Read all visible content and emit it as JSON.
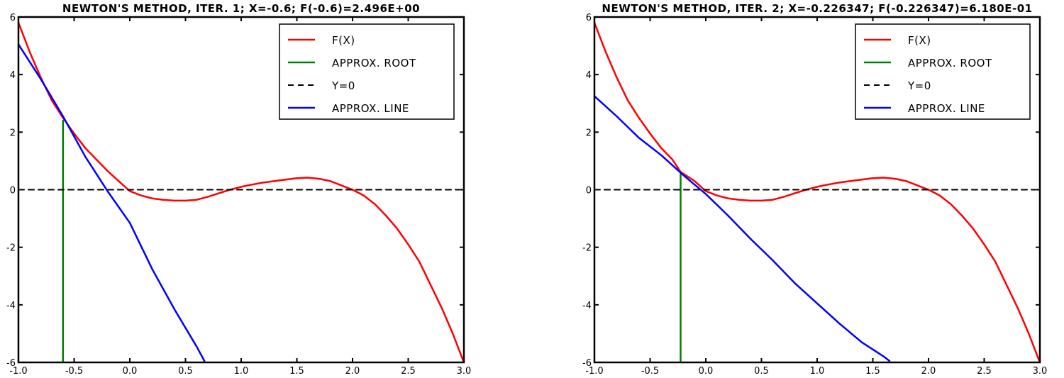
{
  "chart_data": [
    {
      "type": "line",
      "title": "NEWTON'S METHOD, ITER. 1; X=-0.6; F(-0.6)=2.496E+00",
      "xlim": [
        -1.0,
        3.0
      ],
      "ylim": [
        -6,
        6
      ],
      "xticks": [
        "-1.0",
        "-0.5",
        "0.0",
        "0.5",
        "1.0",
        "1.5",
        "2.0",
        "2.5",
        "3.0"
      ],
      "yticks": [
        "-6",
        "-4",
        "-2",
        "0",
        "2",
        "4",
        "6"
      ],
      "grid": false,
      "legend_position": "top-right",
      "series": [
        {
          "name": "F(X)",
          "color": "#ff0000",
          "style": "solid",
          "x": [
            -1.0,
            -0.9,
            -0.8,
            -0.7,
            -0.6,
            -0.5,
            -0.4,
            -0.3,
            -0.2,
            -0.1,
            0.0,
            0.1,
            0.2,
            0.3,
            0.4,
            0.5,
            0.6,
            0.7,
            0.8,
            0.9,
            1.0,
            1.1,
            1.2,
            1.3,
            1.4,
            1.5,
            1.6,
            1.7,
            1.8,
            1.9,
            2.0,
            2.1,
            2.2,
            2.3,
            2.4,
            2.5,
            2.6,
            2.7,
            2.8,
            2.9,
            3.0
          ],
          "y": [
            5.8,
            4.8,
            3.9,
            3.1,
            2.496,
            1.95,
            1.45,
            1.05,
            0.65,
            0.3,
            -0.05,
            -0.2,
            -0.3,
            -0.35,
            -0.38,
            -0.38,
            -0.35,
            -0.25,
            -0.12,
            0.0,
            0.1,
            0.18,
            0.25,
            0.3,
            0.35,
            0.4,
            0.42,
            0.38,
            0.3,
            0.15,
            0.0,
            -0.2,
            -0.5,
            -0.9,
            -1.35,
            -1.9,
            -2.5,
            -3.3,
            -4.1,
            -5.0,
            -6.0
          ]
        },
        {
          "name": "APPROX. ROOT",
          "color": "#008000",
          "style": "solid",
          "x": [
            -0.6,
            -0.6
          ],
          "y": [
            -5.95,
            2.4
          ]
        },
        {
          "name": "Y=0",
          "color": "#000000",
          "style": "dashed",
          "x": [
            -1.0,
            3.0
          ],
          "y": [
            0,
            0
          ]
        },
        {
          "name": "APPROX. LINE",
          "color": "#0000ff",
          "style": "solid",
          "x": [
            -1.0,
            -0.8,
            -0.6,
            -0.4,
            -0.2,
            0.0,
            0.2,
            0.4,
            0.6,
            0.67
          ],
          "y": [
            5.05,
            3.85,
            2.55,
            1.15,
            -0.05,
            -1.15,
            -2.75,
            -4.15,
            -5.45,
            -5.95
          ]
        }
      ]
    },
    {
      "type": "line",
      "title": "NEWTON'S METHOD, ITER. 2; X=-0.226347; F(-0.226347)=6.180E-01",
      "xlim": [
        -1.0,
        3.0
      ],
      "ylim": [
        -6,
        6
      ],
      "xticks": [
        "-1.0",
        "-0.5",
        "0.0",
        "0.5",
        "1.0",
        "1.5",
        "2.0",
        "2.5",
        "3.0"
      ],
      "yticks": [
        "-6",
        "-4",
        "-2",
        "0",
        "2",
        "4",
        "6"
      ],
      "grid": false,
      "legend_position": "top-right",
      "series": [
        {
          "name": "F(X)",
          "color": "#ff0000",
          "style": "solid",
          "x": [
            -1.0,
            -0.9,
            -0.8,
            -0.7,
            -0.6,
            -0.5,
            -0.4,
            -0.3,
            -0.226347,
            -0.1,
            0.0,
            0.1,
            0.2,
            0.3,
            0.4,
            0.5,
            0.6,
            0.7,
            0.8,
            0.9,
            1.0,
            1.1,
            1.2,
            1.3,
            1.4,
            1.5,
            1.6,
            1.7,
            1.8,
            1.9,
            2.0,
            2.1,
            2.2,
            2.3,
            2.4,
            2.5,
            2.6,
            2.7,
            2.8,
            2.9,
            3.0
          ],
          "y": [
            5.8,
            4.8,
            3.9,
            3.1,
            2.496,
            1.95,
            1.45,
            1.05,
            0.618,
            0.3,
            -0.05,
            -0.2,
            -0.3,
            -0.35,
            -0.38,
            -0.38,
            -0.35,
            -0.25,
            -0.12,
            0.0,
            0.1,
            0.18,
            0.25,
            0.3,
            0.35,
            0.4,
            0.42,
            0.38,
            0.3,
            0.15,
            0.0,
            -0.2,
            -0.5,
            -0.9,
            -1.35,
            -1.9,
            -2.5,
            -3.3,
            -4.1,
            -5.0,
            -6.0
          ]
        },
        {
          "name": "APPROX. ROOT",
          "color": "#008000",
          "style": "solid",
          "x": [
            -0.226347,
            -0.226347
          ],
          "y": [
            -5.95,
            0.6
          ]
        },
        {
          "name": "Y=0",
          "color": "#000000",
          "style": "dashed",
          "x": [
            -1.0,
            3.0
          ],
          "y": [
            0,
            0
          ]
        },
        {
          "name": "APPROX. LINE",
          "color": "#0000ff",
          "style": "solid",
          "x": [
            -1.0,
            -0.8,
            -0.6,
            -0.4,
            -0.2,
            0.0,
            0.2,
            0.4,
            0.6,
            0.8,
            1.0,
            1.2,
            1.4,
            1.6,
            1.65
          ],
          "y": [
            3.25,
            2.55,
            1.8,
            1.2,
            0.5,
            -0.15,
            -0.9,
            -1.7,
            -2.45,
            -3.25,
            -3.95,
            -4.65,
            -5.3,
            -5.8,
            -5.95
          ]
        }
      ]
    }
  ]
}
